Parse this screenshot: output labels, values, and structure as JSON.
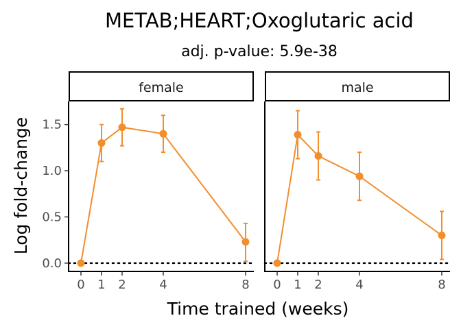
{
  "chart_data": {
    "type": "line",
    "title": "METAB;HEART;Oxoglutaric acid",
    "subtitle": "adj. p-value: 5.9e-38",
    "xlabel": "Time trained (weeks)",
    "ylabel": "Log fold-change",
    "x_ticks": [
      0,
      1,
      2,
      4,
      8
    ],
    "x_tick_labels": [
      "0",
      "1",
      "2",
      "4",
      "8"
    ],
    "xlim": [
      -0.6,
      8.4
    ],
    "y_ticks": [
      0.0,
      0.5,
      1.0,
      1.5
    ],
    "y_tick_labels": [
      "0.0",
      "0.5",
      "1.0",
      "1.5"
    ],
    "ylim": [
      -0.09,
      1.75
    ],
    "reference_line": 0,
    "grid": false,
    "series_color": "#F28E2B",
    "panels": [
      {
        "label": "female",
        "points": [
          {
            "x": 0,
            "y": 0.0,
            "lo": null,
            "hi": null
          },
          {
            "x": 1,
            "y": 1.3,
            "lo": 1.1,
            "hi": 1.5
          },
          {
            "x": 2,
            "y": 1.47,
            "lo": 1.27,
            "hi": 1.67
          },
          {
            "x": 4,
            "y": 1.4,
            "lo": 1.2,
            "hi": 1.6
          },
          {
            "x": 8,
            "y": 0.23,
            "lo": 0.02,
            "hi": 0.43
          }
        ]
      },
      {
        "label": "male",
        "points": [
          {
            "x": 0,
            "y": 0.0,
            "lo": null,
            "hi": null
          },
          {
            "x": 1,
            "y": 1.39,
            "lo": 1.13,
            "hi": 1.65
          },
          {
            "x": 2,
            "y": 1.16,
            "lo": 0.9,
            "hi": 1.42
          },
          {
            "x": 4,
            "y": 0.94,
            "lo": 0.68,
            "hi": 1.2
          },
          {
            "x": 8,
            "y": 0.3,
            "lo": 0.04,
            "hi": 0.56
          }
        ]
      }
    ]
  }
}
